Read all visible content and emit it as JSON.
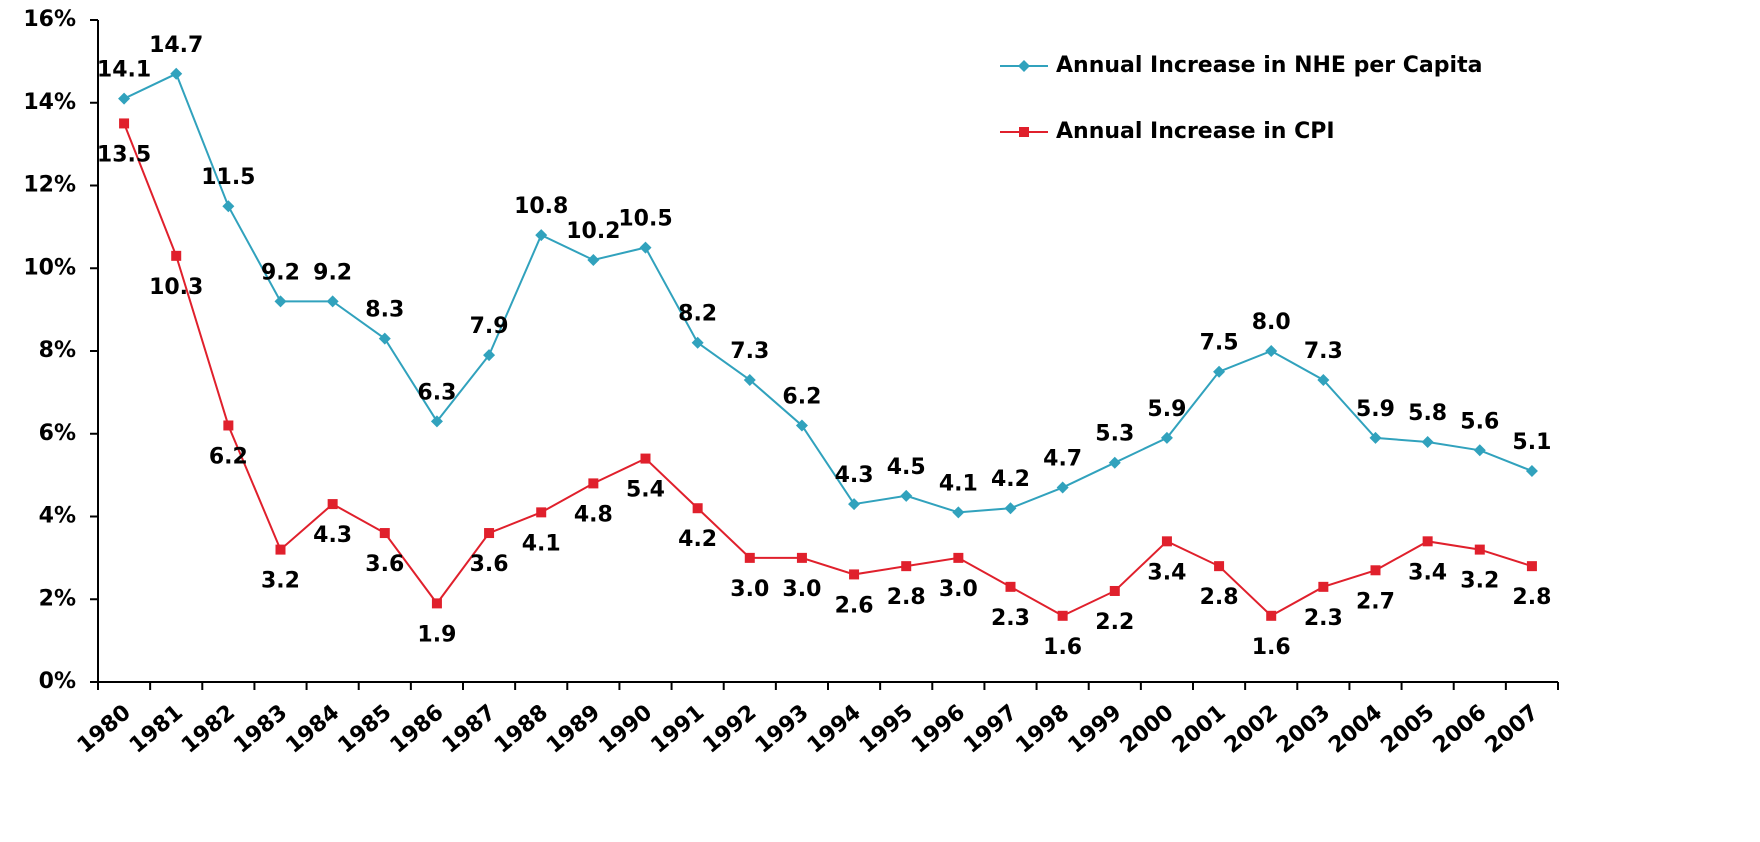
{
  "chart_data": {
    "type": "line",
    "categories": [
      "1980",
      "1981",
      "1982",
      "1983",
      "1984",
      "1985",
      "1986",
      "1987",
      "1988",
      "1989",
      "1990",
      "1991",
      "1992",
      "1993",
      "1994",
      "1995",
      "1996",
      "1997",
      "1998",
      "1999",
      "2000",
      "2001",
      "2002",
      "2003",
      "2004",
      "2005",
      "2006",
      "2007"
    ],
    "series": [
      {
        "name": "Annual Increase in NHE per Capita",
        "color": "#31a2bd",
        "marker": "diamond",
        "values": [
          14.1,
          14.7,
          11.5,
          9.2,
          9.2,
          8.3,
          6.3,
          7.9,
          10.8,
          10.2,
          10.5,
          8.2,
          7.3,
          6.2,
          4.3,
          4.5,
          4.1,
          4.2,
          4.7,
          5.3,
          5.9,
          7.5,
          8.0,
          7.3,
          5.9,
          5.8,
          5.6,
          5.1
        ],
        "value_labels": [
          "14.1",
          "14.7",
          "11.5",
          "9.2",
          "9.2",
          "8.3",
          "6.3",
          "7.9",
          "10.8",
          "10.2",
          "10.5",
          "8.2",
          "7.3",
          "6.2",
          "4.3",
          "4.5",
          "4.1",
          "4.2",
          "4.7",
          "5.3",
          "5.9",
          "7.5",
          "8.0",
          "7.3",
          "5.9",
          "5.8",
          "5.6",
          "5.1"
        ]
      },
      {
        "name": "Annual Increase in CPI",
        "color": "#e0202c",
        "marker": "square",
        "values": [
          13.5,
          10.3,
          6.2,
          3.2,
          4.3,
          3.6,
          1.9,
          3.6,
          4.1,
          4.8,
          5.4,
          4.2,
          3.0,
          3.0,
          2.6,
          2.8,
          3.0,
          2.3,
          1.6,
          2.2,
          3.4,
          2.8,
          1.6,
          2.3,
          2.7,
          3.4,
          3.2,
          2.8
        ],
        "value_labels": [
          "13.5",
          "10.3",
          "6.2",
          "3.2",
          "4.3",
          "3.6",
          "1.9",
          "3.6",
          "4.1",
          "4.8",
          "5.4",
          "4.2",
          "3.0",
          "3.0",
          "2.6",
          "2.8",
          "3.0",
          "2.3",
          "1.6",
          "2.2",
          "3.4",
          "2.8",
          "1.6",
          "2.3",
          "2.7",
          "3.4",
          "3.2",
          "2.8"
        ]
      }
    ],
    "ylim": [
      0,
      16
    ],
    "yticks": [
      {
        "value": 0,
        "label": "0%"
      },
      {
        "value": 2,
        "label": "2%"
      },
      {
        "value": 4,
        "label": "4%"
      },
      {
        "value": 6,
        "label": "6%"
      },
      {
        "value": 8,
        "label": "8%"
      },
      {
        "value": 10,
        "label": "10%"
      },
      {
        "value": 12,
        "label": "12%"
      },
      {
        "value": 14,
        "label": "14%"
      },
      {
        "value": 16,
        "label": "16%"
      }
    ],
    "legend": "top-right"
  }
}
